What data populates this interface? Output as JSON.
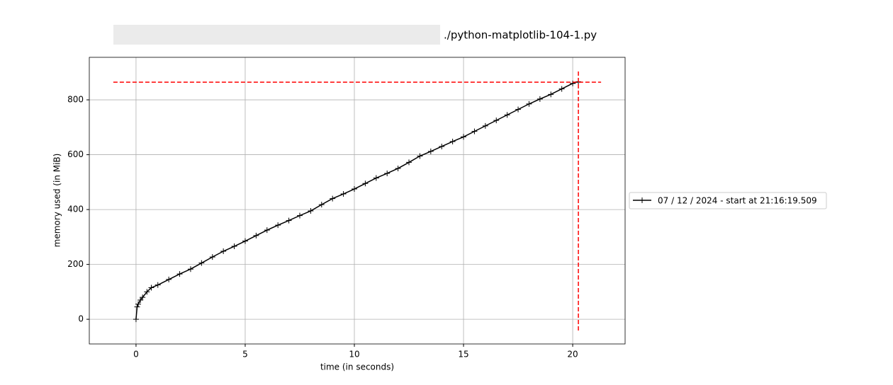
{
  "chart_data": {
    "type": "line",
    "title": "./python-matplotlib-104-1.py",
    "xlabel": "time (in seconds)",
    "ylabel": "memory used (in MiB)",
    "x": [
      0,
      0.05,
      0.1,
      0.2,
      0.3,
      0.5,
      0.7,
      1,
      1.5,
      2,
      2.5,
      3,
      3.5,
      4,
      4.5,
      5,
      5.5,
      6,
      6.5,
      7,
      7.5,
      8,
      8.5,
      9,
      9.5,
      10,
      10.5,
      11,
      11.5,
      12,
      12.5,
      13,
      13.5,
      14,
      14.5,
      15,
      15.5,
      16,
      16.5,
      17,
      17.5,
      18,
      18.5,
      19,
      19.5,
      20,
      20.26
    ],
    "series": [
      {
        "name": "07 / 12 / 2024 - start at 21:16:19.509",
        "color": "#000000",
        "values": [
          0,
          45,
          55,
          70,
          80,
          100,
          115,
          125,
          145,
          165,
          183,
          205,
          227,
          248,
          266,
          285,
          305,
          325,
          343,
          360,
          378,
          395,
          418,
          440,
          457,
          475,
          495,
          515,
          532,
          550,
          572,
          595,
          612,
          630,
          648,
          665,
          685,
          705,
          725,
          745,
          765,
          785,
          803,
          820,
          840,
          860,
          866
        ]
      }
    ],
    "xlim": [
      -2.14,
      22.4
    ],
    "ylim": [
      -90,
      955
    ],
    "xticks": [
      0,
      5,
      10,
      15,
      20
    ],
    "yticks": [
      0,
      200,
      400,
      600,
      800
    ],
    "grid": true,
    "legend": "outside right",
    "reference_lines": {
      "color": "#ff0000",
      "horizontal": {
        "y": 864.5,
        "xmin": -1.04,
        "xmax": 21.3
      },
      "vertical": {
        "x": 20.26,
        "ymin": -41,
        "ymax": 906
      }
    }
  }
}
